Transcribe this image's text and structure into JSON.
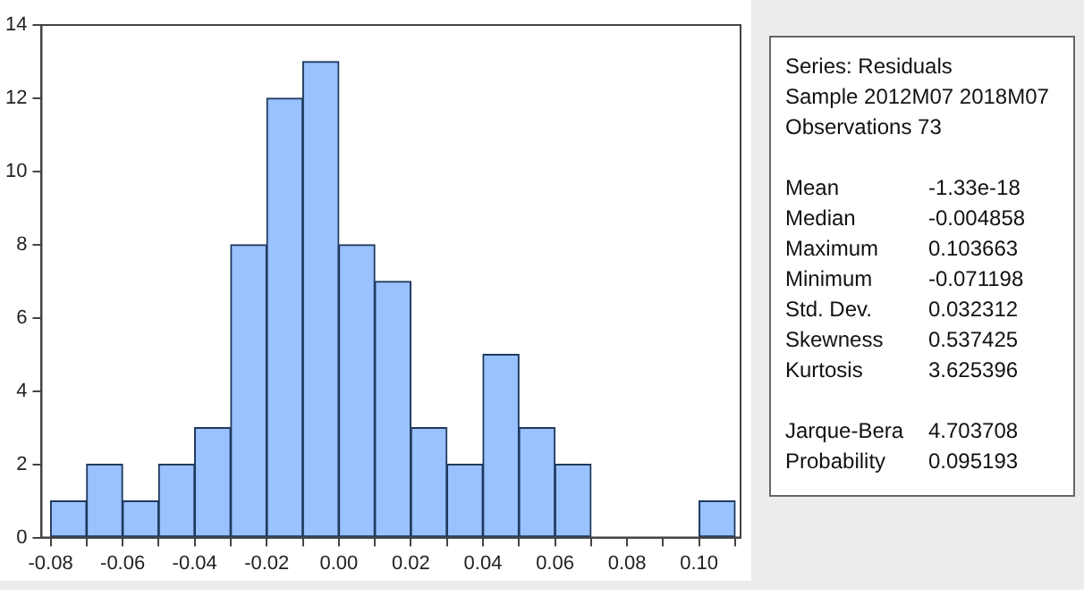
{
  "chart_data": [
    {
      "type": "histogram",
      "bins": [
        -0.08,
        -0.07,
        -0.06,
        -0.05,
        -0.04,
        -0.03,
        -0.02,
        -0.01,
        0,
        0.01,
        0.02,
        0.03,
        0.04,
        0.05,
        0.06,
        0.07,
        0.08,
        0.09,
        0.1,
        0.11
      ],
      "values": [
        1,
        2,
        1,
        2,
        3,
        8,
        12,
        13,
        8,
        7,
        3,
        2,
        5,
        3,
        2,
        0,
        0,
        0,
        1
      ],
      "color": "#99c2ff",
      "xlim": [
        -0.0825,
        0.1115
      ],
      "ylim": [
        0,
        14
      ],
      "xticks": [
        -0.08,
        {
          "value": -0.07,
          "label": null
        },
        -0.06,
        {
          "value": -0.05,
          "label": null
        },
        -0.04,
        {
          "value": -0.03,
          "label": null
        },
        -0.02,
        {
          "value": -0.01,
          "label": null
        },
        {
          "value": 0,
          "label": "0.00"
        },
        {
          "value": 0.01,
          "label": null
        },
        0.02,
        {
          "value": 0.03,
          "label": null
        },
        0.04,
        {
          "value": 0.05,
          "label": null
        },
        0.06,
        {
          "value": 0.07,
          "label": null
        },
        0.08,
        {
          "value": 0.09,
          "label": null
        },
        {
          "value": 0.1,
          "label": "0.10"
        },
        {
          "value": 0.11,
          "label": null
        }
      ],
      "yticks": [
        0,
        2,
        4,
        6,
        8,
        10,
        12,
        14
      ],
      "grid": false,
      "legend": false
    },
    {
      "type": "other",
      "annotations": [
        "Series: Residuals",
        "Sample 2012M07 2018M07",
        "Observations 73"
      ],
      "categories": [
        "Mean",
        "Median",
        "Maximum",
        "Minimum",
        "Std. Dev.",
        "Skewness",
        "Kurtosis",
        null,
        "Jarque-Bera",
        "Probability"
      ],
      "value_labels": [
        "-1.33e-18",
        "-0.004858",
        "0.103663",
        "-0.071198",
        "0.032312",
        "0.537425",
        "3.625396",
        null,
        "4.703708",
        "0.095193"
      ]
    }
  ]
}
